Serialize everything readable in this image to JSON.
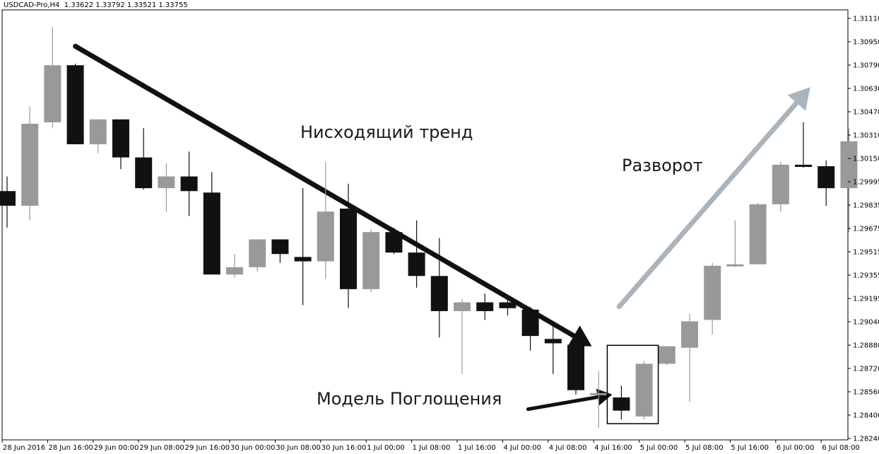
{
  "header": {
    "symbol": "USDCAD-Pro,H4",
    "ohlc": "1.33622 1.33792 1.33521 1.33755"
  },
  "chart_data": {
    "type": "candlestick",
    "title": "USDCAD-Pro,H4",
    "y_ticks": [
      "1.31110",
      "1.30950",
      "1.30790",
      "1.30630",
      "1.30470",
      "1.30310",
      "1.30150",
      "1.29995",
      "1.29835",
      "1.29675",
      "1.29515",
      "1.29355",
      "1.29195",
      "1.29040",
      "1.28880",
      "1.28720",
      "1.28560",
      "1.28400",
      "1.28240"
    ],
    "x_ticks": [
      "28 Jun 2016",
      "28 Jun 16:00",
      "29 Jun 00:00",
      "29 Jun 08:00",
      "29 Jun 16:00",
      "30 Jun 00:00",
      "30 Jun 08:00",
      "30 Jun 16:00",
      "1 Jul 00:00",
      "1 Jul 08:00",
      "1 Jul 16:00",
      "4 Jul 00:00",
      "4 Jul 08:00",
      "4 Jul 16:00",
      "5 Jul 00:00",
      "5 Jul 08:00",
      "5 Jul 16:00",
      "6 Jul 00:00",
      "6 Jul 08:00"
    ],
    "ylim": [
      1.2822,
      1.3117
    ],
    "colors": {
      "bull": "#999999",
      "bear": "#111111",
      "trend_arrow": "#111111",
      "reversal_arrow": "#a9b4bc"
    },
    "candles": [
      {
        "o": 1.2993,
        "h": 1.3003,
        "l": 1.2968,
        "c": 1.2983
      },
      {
        "o": 1.2983,
        "h": 1.3051,
        "l": 1.2973,
        "c": 1.3039
      },
      {
        "o": 1.304,
        "h": 1.3105,
        "l": 1.3036,
        "c": 1.3079
      },
      {
        "o": 1.3079,
        "h": 1.308,
        "l": 1.3025,
        "c": 1.3025
      },
      {
        "o": 1.3025,
        "h": 1.3042,
        "l": 1.3019,
        "c": 1.3042
      },
      {
        "o": 1.3042,
        "h": 1.3042,
        "l": 1.3008,
        "c": 1.3016
      },
      {
        "o": 1.3016,
        "h": 1.3036,
        "l": 1.2994,
        "c": 1.2995
      },
      {
        "o": 1.2995,
        "h": 1.3012,
        "l": 1.2979,
        "c": 1.3003
      },
      {
        "o": 1.3003,
        "h": 1.302,
        "l": 1.2976,
        "c": 1.2993
      },
      {
        "o": 1.2992,
        "h": 1.3006,
        "l": 1.2936,
        "c": 1.2936
      },
      {
        "o": 1.2936,
        "h": 1.295,
        "l": 1.2934,
        "c": 1.2941
      },
      {
        "o": 1.2941,
        "h": 1.296,
        "l": 1.2938,
        "c": 1.296
      },
      {
        "o": 1.296,
        "h": 1.296,
        "l": 1.2944,
        "c": 1.295
      },
      {
        "o": 1.2948,
        "h": 1.2995,
        "l": 1.2915,
        "c": 1.2945
      },
      {
        "o": 1.2945,
        "h": 1.3013,
        "l": 1.2933,
        "c": 1.2979
      },
      {
        "o": 1.2981,
        "h": 1.2998,
        "l": 1.2913,
        "c": 1.2926
      },
      {
        "o": 1.2926,
        "h": 1.2967,
        "l": 1.2924,
        "c": 1.2965
      },
      {
        "o": 1.2965,
        "h": 1.2968,
        "l": 1.295,
        "c": 1.2951
      },
      {
        "o": 1.2951,
        "h": 1.2973,
        "l": 1.2927,
        "c": 1.2935
      },
      {
        "o": 1.2935,
        "h": 1.2961,
        "l": 1.2893,
        "c": 1.2911
      },
      {
        "o": 1.2911,
        "h": 1.2919,
        "l": 1.2868,
        "c": 1.2917
      },
      {
        "o": 1.2917,
        "h": 1.2923,
        "l": 1.2905,
        "c": 1.2911
      },
      {
        "o": 1.2917,
        "h": 1.292,
        "l": 1.2908,
        "c": 1.2913
      },
      {
        "o": 1.2912,
        "h": 1.2914,
        "l": 1.2884,
        "c": 1.2894
      },
      {
        "o": 1.2892,
        "h": 1.2904,
        "l": 1.2868,
        "c": 1.2889
      },
      {
        "o": 1.2888,
        "h": 1.2889,
        "l": 1.2854,
        "c": 1.2857
      },
      {
        "o": 1.2855,
        "h": 1.287,
        "l": 1.2831,
        "c": 1.2855
      },
      {
        "o": 1.2852,
        "h": 1.286,
        "l": 1.2837,
        "c": 1.2843
      },
      {
        "o": 1.2839,
        "h": 1.2877,
        "l": 1.2837,
        "c": 1.2875
      },
      {
        "o": 1.2875,
        "h": 1.2886,
        "l": 1.2874,
        "c": 1.2887
      },
      {
        "o": 1.2886,
        "h": 1.2909,
        "l": 1.2849,
        "c": 1.2904
      },
      {
        "o": 1.2905,
        "h": 1.2944,
        "l": 1.2895,
        "c": 1.2942
      },
      {
        "o": 1.2942,
        "h": 1.2973,
        "l": 1.2941,
        "c": 1.2943
      },
      {
        "o": 1.2943,
        "h": 1.2985,
        "l": 1.2943,
        "c": 1.2984
      },
      {
        "o": 1.2984,
        "h": 1.3013,
        "l": 1.2979,
        "c": 1.3011
      },
      {
        "o": 1.3011,
        "h": 1.304,
        "l": 1.3009,
        "c": 1.301
      },
      {
        "o": 1.301,
        "h": 1.3014,
        "l": 1.2983,
        "c": 1.2995
      },
      {
        "o": 1.2995,
        "h": 1.3036,
        "l": 1.2965,
        "c": 1.3027
      }
    ],
    "engulfing_box": {
      "from_index": 27,
      "to_index": 28
    },
    "annotations": {
      "trend": "Нисходящий тренд",
      "reversal": "Разворот",
      "pattern": "Модель Поглощения"
    },
    "trend_arrow": {
      "from": {
        "x_index": 3.0,
        "y": 1.3092
      },
      "to": {
        "x_index": 25.7,
        "y": 1.2887
      }
    },
    "reversal_arrow": {
      "from": {
        "x_index": 26.9,
        "y": 1.2914
      },
      "to": {
        "x_index": 35.3,
        "y": 1.3064
      }
    },
    "pattern_arrow": {
      "from": {
        "x_index": 22.9,
        "y": 1.2844
      },
      "to": {
        "x_index": 26.6,
        "y": 1.2854
      }
    }
  }
}
